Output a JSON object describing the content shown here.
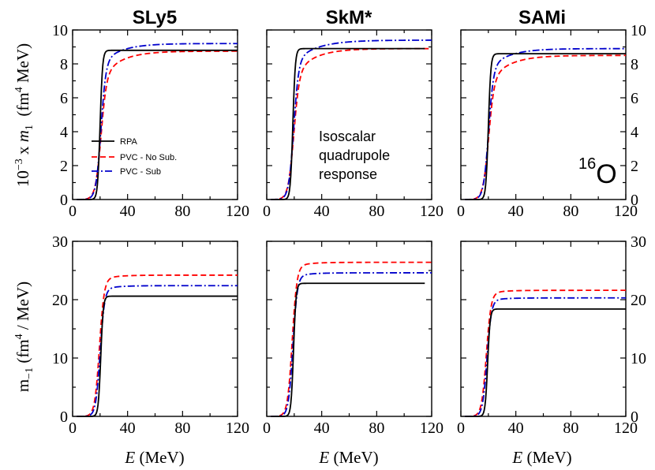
{
  "chart_data": {
    "type": "line",
    "columns": [
      "SLy5",
      "SkM*",
      "SAMi"
    ],
    "rows": [
      "m1",
      "m-1"
    ],
    "xlim": [
      0,
      120
    ],
    "xticks": [
      0,
      40,
      80,
      120
    ],
    "xlabel": {
      "var": "E",
      "unit": "(MeV)"
    },
    "top_ylabel": {
      "prefix": "10",
      "exp": "−3",
      "times": "x",
      "m": "m",
      "msub": "1",
      "unit_open": "(fm",
      "unit_exp": "4",
      "unit_close": "MeV)"
    },
    "bottom_ylabel": {
      "m": "m",
      "msub": "−1",
      "unit_open": "(fm",
      "unit_exp": "4",
      "unit_close": "/ MeV)"
    },
    "top_ylim": [
      0,
      10
    ],
    "top_yticks": [
      0,
      2,
      4,
      6,
      8,
      10
    ],
    "bottom_ylim": [
      0,
      30
    ],
    "bottom_yticks": [
      0,
      10,
      20,
      30
    ],
    "legend": [
      {
        "key": "rpa",
        "label": "RPA"
      },
      {
        "key": "nosub",
        "label": "PVC - No Sub."
      },
      {
        "key": "sub",
        "label": "PVC - Sub"
      }
    ],
    "annotation": [
      "Isoscalar",
      "quadrupole",
      "response"
    ],
    "nucleus": {
      "mass": "16",
      "symbol": "O"
    },
    "colors": {
      "rpa": "#000000",
      "nosub": "#ff0000",
      "sub": "#0000cc"
    },
    "series": {
      "m1": {
        "SLy5": {
          "rpa": {
            "E0": 20.0,
            "w": 0.9,
            "plateau": 8.8,
            "end": 120
          },
          "nosub": {
            "E0": 20.5,
            "w": 2.0,
            "plateau": 8.75,
            "tail": 1.6,
            "tail_w": 14,
            "end": 120
          },
          "sub": {
            "E0": 20.5,
            "w": 1.8,
            "plateau": 9.2,
            "tail": 1.2,
            "tail_w": 14,
            "end": 120
          }
        },
        "SkM*": {
          "rpa": {
            "E0": 19.0,
            "w": 0.9,
            "plateau": 8.9,
            "end": 115
          },
          "nosub": {
            "E0": 19.5,
            "w": 2.0,
            "plateau": 8.9,
            "tail": 1.6,
            "tail_w": 14,
            "end": 120
          },
          "sub": {
            "E0": 19.5,
            "w": 1.8,
            "plateau": 9.4,
            "tail": 1.3,
            "tail_w": 16,
            "end": 120
          }
        },
        "SAMi": {
          "rpa": {
            "E0": 20.0,
            "w": 0.9,
            "plateau": 8.6,
            "end": 120
          },
          "nosub": {
            "E0": 20.0,
            "w": 2.0,
            "plateau": 8.5,
            "tail": 1.6,
            "tail_w": 14,
            "end": 120
          },
          "sub": {
            "E0": 20.0,
            "w": 1.8,
            "plateau": 8.9,
            "tail": 1.2,
            "tail_w": 14,
            "end": 120
          }
        }
      },
      "m-1": {
        "SLy5": {
          "rpa": {
            "E0": 20.5,
            "w": 0.9,
            "plateau": 20.6,
            "end": 120
          },
          "nosub": {
            "E0": 19.5,
            "w": 1.7,
            "plateau": 24.2,
            "tail": 0.8,
            "tail_w": 10,
            "end": 120
          },
          "sub": {
            "E0": 20.0,
            "w": 1.6,
            "plateau": 22.4,
            "tail": 0.7,
            "tail_w": 10,
            "end": 120
          }
        },
        "SkM*": {
          "rpa": {
            "E0": 19.5,
            "w": 0.9,
            "plateau": 22.8,
            "end": 115
          },
          "nosub": {
            "E0": 18.5,
            "w": 1.7,
            "plateau": 26.4,
            "tail": 0.8,
            "tail_w": 10,
            "end": 120
          },
          "sub": {
            "E0": 19.0,
            "w": 1.6,
            "plateau": 24.6,
            "tail": 0.7,
            "tail_w": 10,
            "end": 120
          }
        },
        "SAMi": {
          "rpa": {
            "E0": 19.5,
            "w": 0.9,
            "plateau": 18.4,
            "end": 120
          },
          "nosub": {
            "E0": 18.5,
            "w": 1.7,
            "plateau": 21.6,
            "tail": 0.6,
            "tail_w": 10,
            "end": 120
          },
          "sub": {
            "E0": 19.0,
            "w": 1.6,
            "plateau": 20.3,
            "tail": 0.5,
            "tail_w": 10,
            "end": 120
          }
        }
      }
    }
  }
}
